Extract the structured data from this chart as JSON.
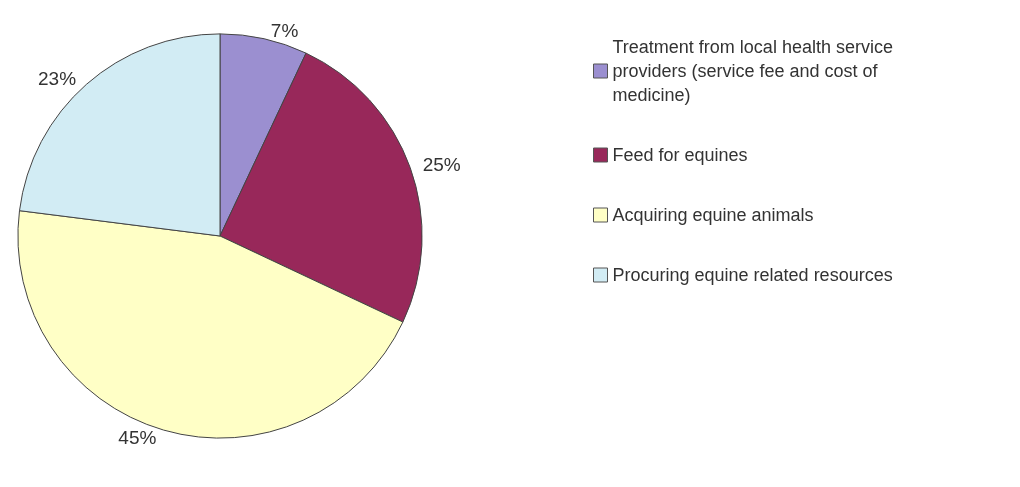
{
  "chart_data": {
    "type": "pie",
    "categories": [
      "Treatment from local health service providers (service fee and cost of medicine)",
      "Feed for equines",
      "Acquiring equine animals",
      "Procuring equine related resources"
    ],
    "values": [
      7,
      25,
      45,
      23
    ],
    "colors": [
      "#9b8fd0",
      "#98285a",
      "#ffffc6",
      "#d2ecf4"
    ],
    "value_labels": [
      "7%",
      "25%",
      "45%",
      "23%"
    ],
    "legend": "right"
  }
}
